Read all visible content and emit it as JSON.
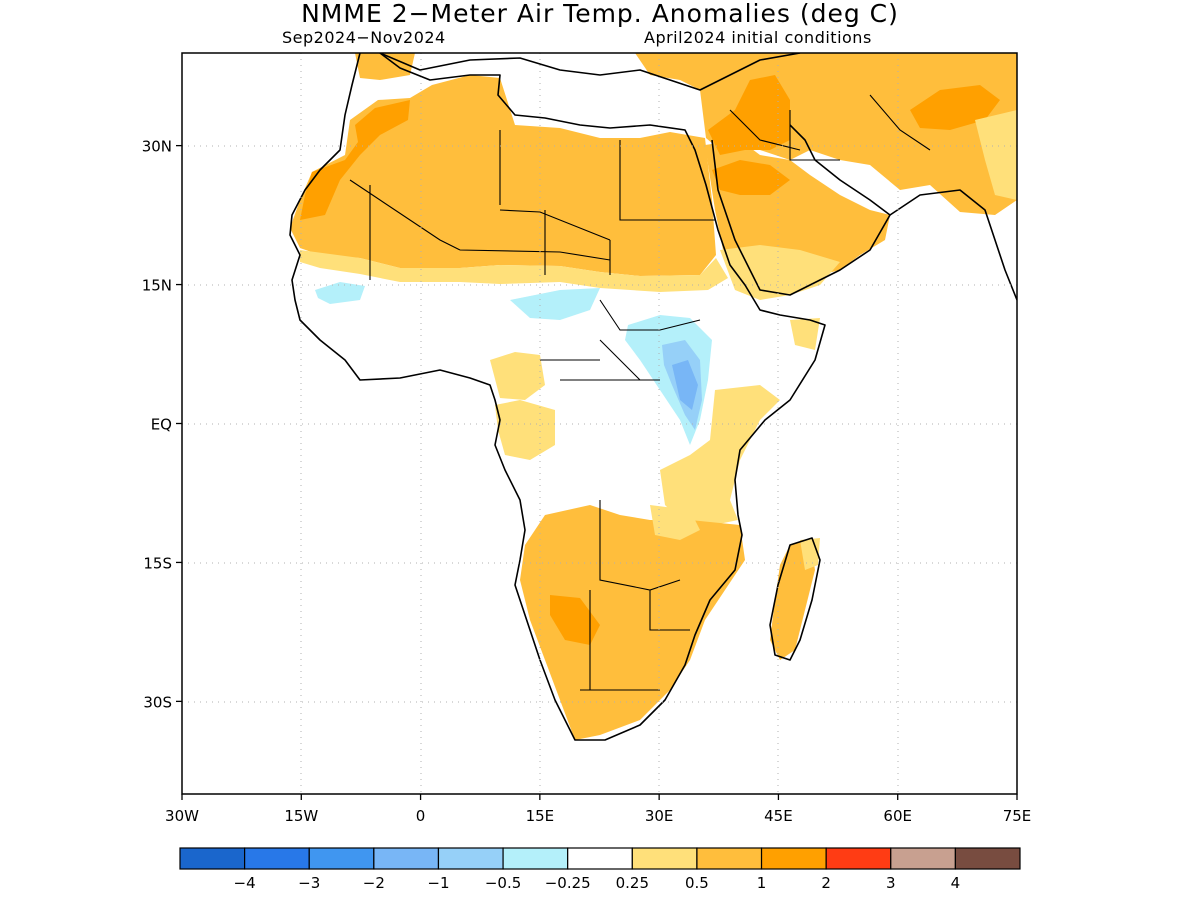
{
  "title": "NMME 2−Meter Air Temp. Anomalies (deg C)",
  "subtitle_left": "Sep2024−Nov2024",
  "subtitle_right": "April2024 initial conditions",
  "map": {
    "lon_range": [
      -30,
      75
    ],
    "lat_range": [
      -40,
      40
    ],
    "grid": true
  },
  "axes": {
    "x_ticks": [
      {
        "label": "30W",
        "lon": -30
      },
      {
        "label": "15W",
        "lon": -15
      },
      {
        "label": "0",
        "lon": 0
      },
      {
        "label": "15E",
        "lon": 15
      },
      {
        "label": "30E",
        "lon": 30
      },
      {
        "label": "45E",
        "lon": 45
      },
      {
        "label": "60E",
        "lon": 60
      },
      {
        "label": "75E",
        "lon": 75
      }
    ],
    "y_ticks": [
      {
        "label": "30N",
        "lat": 30
      },
      {
        "label": "15N",
        "lat": 15
      },
      {
        "label": "EQ",
        "lat": 0
      },
      {
        "label": "15S",
        "lat": -15
      },
      {
        "label": "30S",
        "lat": -30
      }
    ]
  },
  "colorbar": {
    "colors": [
      "#1a66cc",
      "#2878e8",
      "#4096f0",
      "#78b6f6",
      "#96d0f8",
      "#b4f0fa",
      "#ffffff",
      "#ffe07a",
      "#ffbe3c",
      "#ffa000",
      "#ff3c14",
      "#c8a090",
      "#784c40"
    ],
    "labels": [
      "−4",
      "−3",
      "−2",
      "−1",
      "−0.5",
      "−0.25",
      "0.25",
      "0.5",
      "1",
      "2",
      "3",
      "4"
    ]
  },
  "legend_colors": {
    "yellow": "#ffe07a",
    "light_orange": "#ffbe3c",
    "orange": "#ffa000",
    "light_blue": "#b4f0fa",
    "blue": "#96d0f8",
    "mid_blue": "#78b6f6"
  }
}
